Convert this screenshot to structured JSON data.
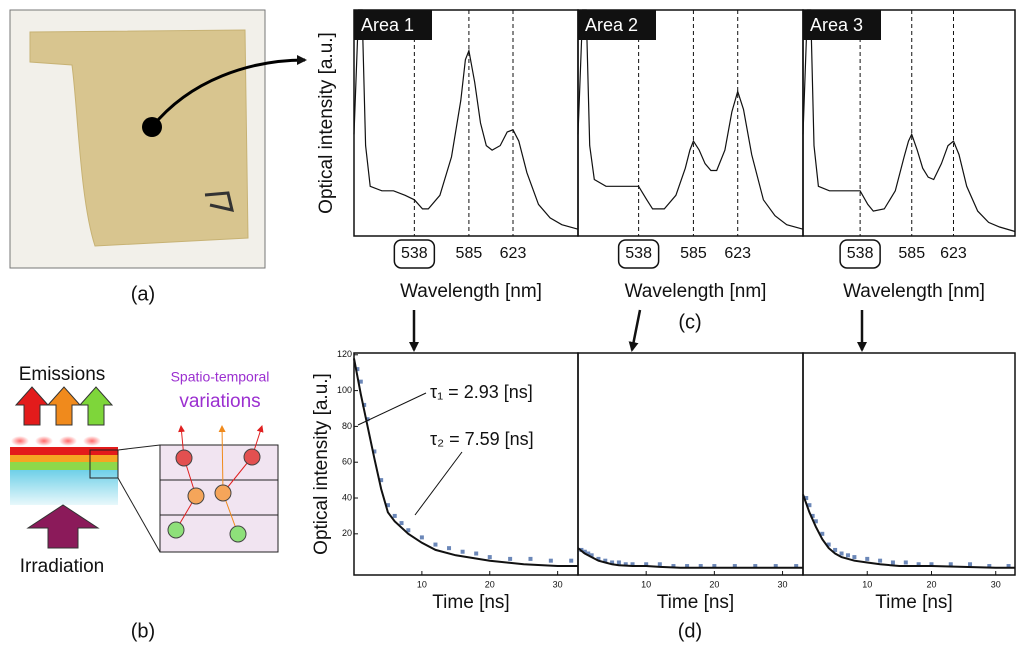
{
  "panels": {
    "a": "(a)",
    "b": "(b)",
    "c": "(c)",
    "d": "(d)"
  },
  "diagram": {
    "emissions": "Emissions",
    "irradiation": "Irradiation",
    "variations_line1": "Spatio-temporal",
    "variations_line2": "variations"
  },
  "chart_data": [
    {
      "type": "line",
      "title": "Area 1",
      "ylabel": "Optical intensity [a.u.]",
      "xlabel": "Wavelength [nm]",
      "color": "#111111",
      "x": [
        486,
        490,
        493,
        496,
        500,
        510,
        520,
        530,
        538,
        545,
        550,
        560,
        570,
        578,
        582,
        585,
        590,
        595,
        600,
        605,
        612,
        618,
        623,
        628,
        635,
        645,
        655,
        665,
        679
      ],
      "values": [
        45,
        100,
        100,
        40,
        22,
        20,
        20,
        18,
        16,
        12,
        12,
        18,
        35,
        60,
        78,
        82,
        68,
        50,
        40,
        38,
        40,
        46,
        47,
        42,
        28,
        14,
        8,
        5,
        3
      ],
      "xlim": [
        486,
        679
      ],
      "ylim": [
        0,
        100
      ],
      "xticks": [
        538,
        585,
        623
      ]
    },
    {
      "type": "line",
      "title": "Area 2",
      "xlabel": "Wavelength [nm]",
      "color": "#111111",
      "x": [
        486,
        490,
        493,
        496,
        500,
        510,
        520,
        530,
        538,
        545,
        550,
        560,
        570,
        578,
        582,
        585,
        590,
        595,
        600,
        605,
        612,
        618,
        623,
        628,
        635,
        645,
        655,
        665,
        679
      ],
      "values": [
        45,
        100,
        100,
        40,
        25,
        22,
        22,
        22,
        22,
        16,
        12,
        12,
        18,
        30,
        38,
        42,
        38,
        32,
        29,
        29,
        38,
        55,
        64,
        56,
        36,
        16,
        9,
        5,
        3
      ],
      "xlim": [
        486,
        679
      ],
      "ylim": [
        0,
        100
      ],
      "xticks": [
        538,
        585,
        623
      ]
    },
    {
      "type": "line",
      "title": "Area 3",
      "xlabel": "Wavelength [nm]",
      "color": "#111111",
      "x": [
        486,
        490,
        493,
        496,
        500,
        510,
        520,
        530,
        538,
        545,
        550,
        560,
        570,
        578,
        582,
        585,
        590,
        595,
        600,
        605,
        612,
        618,
        623,
        628,
        635,
        645,
        655,
        665,
        679
      ],
      "values": [
        45,
        100,
        100,
        40,
        22,
        20,
        20,
        20,
        20,
        14,
        11,
        12,
        20,
        35,
        42,
        45,
        38,
        30,
        26,
        25,
        32,
        40,
        42,
        36,
        22,
        11,
        6,
        4,
        2
      ],
      "xlim": [
        486,
        679
      ],
      "ylim": [
        0,
        100
      ],
      "xticks": [
        538,
        585,
        623
      ]
    },
    {
      "type": "decay",
      "ylabel": "Optical intensity [a.u.]",
      "xlabel": "Time [ns]",
      "annotations": [
        "τ₁ = 2.93 [ns]",
        "τ₂ = 7.59 [ns]"
      ],
      "series": [
        {
          "color": "#6b87b8",
          "x": [
            0.5,
            1,
            1.5,
            2,
            3,
            4,
            5,
            6,
            7,
            8,
            10,
            12,
            14,
            16,
            18,
            20,
            23,
            26,
            29,
            32
          ],
          "values": [
            112,
            105,
            92,
            84,
            66,
            50,
            36,
            30,
            26,
            22,
            18,
            14,
            12,
            10,
            9,
            7,
            6,
            6,
            5,
            5
          ]
        },
        {
          "color": "#111111",
          "x": [
            0,
            1,
            2,
            3,
            4,
            5,
            6,
            8,
            10,
            12,
            15,
            20,
            25,
            30,
            33
          ],
          "values": [
            118,
            98,
            80,
            62,
            45,
            32,
            27,
            20,
            15,
            11,
            8,
            5,
            3,
            2,
            2
          ]
        }
      ],
      "xlim": [
        0,
        33
      ],
      "ylim": [
        -3,
        121
      ],
      "xticks": [
        10,
        20,
        30
      ],
      "yticks": [
        20,
        40,
        60,
        80,
        100,
        120
      ]
    },
    {
      "type": "decay",
      "xlabel": "Time [ns]",
      "series": [
        {
          "color": "#6b87b8",
          "x": [
            0.5,
            1,
            1.5,
            2,
            3,
            4,
            5,
            6,
            7,
            8,
            10,
            12,
            14,
            16,
            18,
            20,
            23,
            26,
            29,
            32
          ],
          "values": [
            11,
            10,
            9,
            8,
            6,
            5,
            4,
            4,
            3,
            3,
            3,
            3,
            2,
            2,
            2,
            2,
            2,
            2,
            2,
            2
          ]
        },
        {
          "color": "#111111",
          "x": [
            0,
            1,
            2,
            3,
            4,
            5,
            6,
            8,
            10,
            12,
            15,
            20,
            25,
            30,
            33
          ],
          "values": [
            12,
            9,
            7,
            5,
            4,
            3,
            2.5,
            2,
            2,
            1.5,
            1,
            1,
            1,
            1,
            1
          ]
        }
      ],
      "xlim": [
        0,
        33
      ],
      "ylim": [
        -3,
        121
      ],
      "xticks": [
        10,
        20,
        30
      ]
    },
    {
      "type": "decay",
      "xlabel": "Time [ns]",
      "series": [
        {
          "color": "#6b87b8",
          "x": [
            0.5,
            1,
            1.5,
            2,
            3,
            4,
            5,
            6,
            7,
            8,
            10,
            12,
            14,
            16,
            18,
            20,
            23,
            26,
            29,
            32
          ],
          "values": [
            40,
            36,
            30,
            27,
            20,
            14,
            11,
            9,
            8,
            7,
            6,
            5,
            4,
            4,
            3,
            3,
            3,
            3,
            2,
            2
          ]
        },
        {
          "color": "#111111",
          "x": [
            0,
            1,
            2,
            3,
            4,
            5,
            6,
            8,
            10,
            12,
            15,
            20,
            25,
            30,
            33
          ],
          "values": [
            42,
            32,
            24,
            17,
            12,
            9,
            7,
            5,
            4,
            3,
            2,
            2,
            1.5,
            1,
            1
          ]
        }
      ],
      "xlim": [
        0,
        33
      ],
      "ylim": [
        -3,
        121
      ],
      "xticks": [
        10,
        20,
        30
      ]
    }
  ]
}
